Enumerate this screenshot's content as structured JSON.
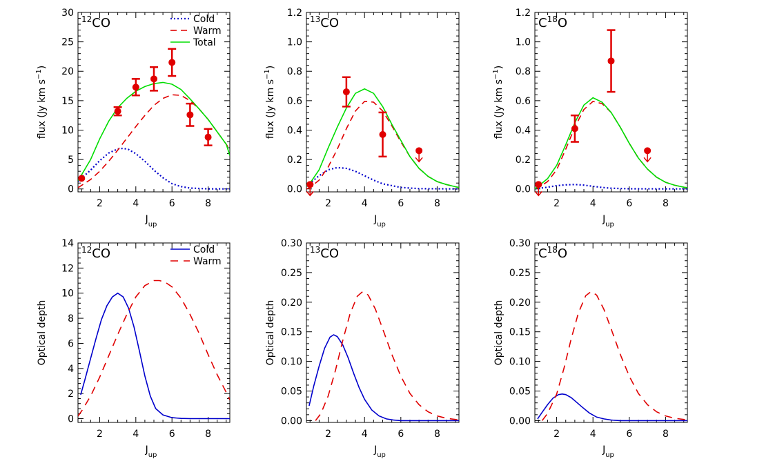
{
  "chart_data": [
    {
      "type": "line",
      "panel": "top-left",
      "label_main": "CO",
      "label_sup": "12",
      "label_order": "sup-main",
      "xlim": [
        0.8,
        9.2
      ],
      "ylim": [
        -0.5,
        30
      ],
      "xticks": [
        2,
        4,
        6,
        8
      ],
      "yticks": [
        0,
        5,
        10,
        15,
        20,
        25,
        30
      ],
      "ytick_labels": [
        "0",
        "5",
        "10",
        "15",
        "20",
        "25",
        "30"
      ],
      "ylabel_parts": [
        "flux (Jy km s",
        "−1",
        ")"
      ],
      "xlabel_main": "J",
      "xlabel_sub": "up",
      "legend": [
        {
          "label": "Cold",
          "style": "dotted",
          "color": "#0000cc"
        },
        {
          "label": "Warm",
          "style": "dashed",
          "color": "#e00000"
        },
        {
          "label": "Total",
          "style": "solid",
          "color": "#00dd00"
        }
      ],
      "series": [
        {
          "name": "Cold",
          "style": "dotted",
          "color": "#0000cc",
          "x": [
            0.8,
            1.5,
            2,
            2.5,
            3,
            3.3,
            3.6,
            4,
            4.5,
            5,
            5.5,
            6,
            6.5,
            7,
            8,
            9.2
          ],
          "y": [
            1.3,
            3.2,
            4.8,
            6.1,
            6.8,
            6.9,
            6.7,
            6.0,
            4.7,
            3.2,
            1.9,
            0.9,
            0.4,
            0.15,
            0.02,
            0
          ]
        },
        {
          "name": "Warm",
          "style": "dashed",
          "color": "#e00000",
          "x": [
            0.8,
            1,
            1.5,
            2,
            2.5,
            3,
            3.5,
            4,
            4.5,
            5,
            5.5,
            6,
            6.5,
            7,
            7.5,
            8,
            8.5,
            9,
            9.2
          ],
          "y": [
            0.2,
            0.6,
            1.6,
            3.0,
            4.7,
            6.6,
            8.6,
            10.6,
            12.5,
            14.2,
            15.4,
            16.0,
            15.9,
            15.0,
            13.6,
            11.8,
            9.7,
            7.6,
            6.7
          ]
        },
        {
          "name": "Total",
          "style": "solid",
          "color": "#00dd00",
          "x": [
            0.8,
            1,
            1.5,
            2,
            2.5,
            3,
            3.5,
            4,
            4.5,
            5,
            5.5,
            6,
            6.5,
            7,
            7.5,
            8,
            8.5,
            9,
            9.2
          ],
          "y": [
            1.4,
            2.4,
            5.0,
            8.5,
            11.5,
            13.8,
            15.4,
            16.6,
            17.4,
            17.9,
            18.1,
            17.8,
            16.9,
            15.3,
            13.6,
            11.8,
            9.7,
            7.6,
            5.7
          ]
        }
      ],
      "points": [
        {
          "x": 1,
          "y": 1.8,
          "err": 0
        },
        {
          "x": 3,
          "y": 13.2,
          "err": 0.7
        },
        {
          "x": 4,
          "y": 17.3,
          "err": 1.4
        },
        {
          "x": 5,
          "y": 18.7,
          "err": 2.0
        },
        {
          "x": 6,
          "y": 21.5,
          "err": 2.3
        },
        {
          "x": 7,
          "y": 12.6,
          "err": 1.9
        },
        {
          "x": 8,
          "y": 8.8,
          "err": 1.4
        }
      ],
      "upper_limits": []
    },
    {
      "type": "line",
      "panel": "top-middle",
      "label_main": "CO",
      "label_sup": "13",
      "label_order": "sup-main",
      "xlim": [
        0.8,
        9.2
      ],
      "ylim": [
        -0.02,
        1.2
      ],
      "xticks": [
        2,
        4,
        6,
        8
      ],
      "yticks": [
        0,
        0.2,
        0.4,
        0.6,
        0.8,
        1.0,
        1.2
      ],
      "ytick_labels": [
        "0.0",
        "0.2",
        "0.4",
        "0.6",
        "0.8",
        "1.0",
        "1.2"
      ],
      "ylabel_parts": [
        "flux (Jy km s",
        "−1",
        ")"
      ],
      "xlabel_main": "J",
      "xlabel_sub": "up",
      "legend": [],
      "series": [
        {
          "name": "Cold",
          "style": "dotted",
          "color": "#0000cc",
          "x": [
            0.8,
            1.5,
            2,
            2.5,
            3,
            3.5,
            4,
            4.5,
            5,
            6,
            7,
            9.2
          ],
          "y": [
            0.02,
            0.09,
            0.13,
            0.145,
            0.14,
            0.12,
            0.09,
            0.06,
            0.035,
            0.01,
            0.002,
            0
          ]
        },
        {
          "name": "Warm",
          "style": "dashed",
          "color": "#e00000",
          "x": [
            0.8,
            1,
            1.5,
            2,
            2.5,
            3,
            3.5,
            4,
            4.5,
            5,
            5.5,
            6,
            6.5,
            7,
            7.5,
            8,
            8.5,
            9,
            9.2
          ],
          "y": [
            0.0,
            0.01,
            0.06,
            0.15,
            0.27,
            0.41,
            0.53,
            0.595,
            0.59,
            0.53,
            0.43,
            0.32,
            0.22,
            0.14,
            0.085,
            0.05,
            0.03,
            0.015,
            0.01
          ]
        },
        {
          "name": "Total",
          "style": "solid",
          "color": "#00dd00",
          "x": [
            0.8,
            1,
            1.5,
            2,
            2.5,
            3,
            3.5,
            4,
            4.5,
            5,
            5.5,
            6,
            6.5,
            7,
            7.5,
            8,
            8.5,
            9,
            9.2
          ],
          "y": [
            0.02,
            0.04,
            0.13,
            0.28,
            0.42,
            0.55,
            0.65,
            0.68,
            0.65,
            0.56,
            0.44,
            0.33,
            0.22,
            0.14,
            0.085,
            0.05,
            0.03,
            0.015,
            0.01
          ]
        }
      ],
      "points": [
        {
          "x": 1,
          "y": 0.03,
          "err": 0
        },
        {
          "x": 3,
          "y": 0.66,
          "err": 0.1
        },
        {
          "x": 5,
          "y": 0.37,
          "err": 0.15
        }
      ],
      "upper_limits": [
        {
          "x": 1,
          "y": 0.03
        },
        {
          "x": 7,
          "y": 0.26
        }
      ]
    },
    {
      "type": "line",
      "panel": "top-right",
      "label_main": "C",
      "label_sup": "18",
      "label_tail": "O",
      "label_order": "main-sup-tail",
      "xlim": [
        0.8,
        9.2
      ],
      "ylim": [
        -0.02,
        1.2
      ],
      "xticks": [
        2,
        4,
        6,
        8
      ],
      "yticks": [
        0,
        0.2,
        0.4,
        0.6,
        0.8,
        1.0,
        1.2
      ],
      "ytick_labels": [
        "0.0",
        "0.2",
        "0.4",
        "0.6",
        "0.8",
        "1.0",
        "1.2"
      ],
      "ylabel_parts": [
        "flux (Jy km s",
        "−1",
        ")"
      ],
      "xlabel_main": "J",
      "xlabel_sub": "up",
      "legend": [],
      "series": [
        {
          "name": "Cold",
          "style": "dotted",
          "color": "#0000cc",
          "x": [
            0.8,
            1.5,
            2,
            2.5,
            3,
            3.5,
            4,
            4.5,
            5,
            6,
            9.2
          ],
          "y": [
            0.0,
            0.012,
            0.022,
            0.028,
            0.03,
            0.026,
            0.018,
            0.01,
            0.005,
            0.001,
            0
          ]
        },
        {
          "name": "Warm",
          "style": "dashed",
          "color": "#e00000",
          "x": [
            0.8,
            1,
            1.5,
            2,
            2.5,
            3,
            3.5,
            4,
            4.5,
            5,
            5.5,
            6,
            6.5,
            7,
            7.5,
            8,
            8.5,
            9,
            9.2
          ],
          "y": [
            0.0,
            0.01,
            0.05,
            0.13,
            0.27,
            0.42,
            0.54,
            0.595,
            0.58,
            0.52,
            0.42,
            0.31,
            0.21,
            0.135,
            0.08,
            0.045,
            0.025,
            0.012,
            0.008
          ]
        },
        {
          "name": "Total",
          "style": "solid",
          "color": "#00dd00",
          "x": [
            0.8,
            1,
            1.5,
            2,
            2.5,
            3,
            3.5,
            4,
            4.5,
            5,
            5.5,
            6,
            6.5,
            7,
            7.5,
            8,
            8.5,
            9,
            9.2
          ],
          "y": [
            0.0,
            0.02,
            0.07,
            0.16,
            0.3,
            0.45,
            0.57,
            0.62,
            0.59,
            0.52,
            0.42,
            0.31,
            0.21,
            0.135,
            0.08,
            0.045,
            0.025,
            0.012,
            0.008
          ]
        }
      ],
      "points": [
        {
          "x": 1,
          "y": 0.03,
          "err": 0
        },
        {
          "x": 3,
          "y": 0.41,
          "err": 0.09
        },
        {
          "x": 5,
          "y": 0.87,
          "err": 0.21
        }
      ],
      "upper_limits": [
        {
          "x": 1,
          "y": 0.03
        },
        {
          "x": 7,
          "y": 0.26
        }
      ]
    },
    {
      "type": "line",
      "panel": "bottom-left",
      "label_main": "CO",
      "label_sup": "12",
      "label_order": "sup-main",
      "xlim": [
        0.8,
        9.2
      ],
      "ylim": [
        -0.3,
        14
      ],
      "xticks": [
        2,
        4,
        6,
        8
      ],
      "yticks": [
        0,
        2,
        4,
        6,
        8,
        10,
        12,
        14
      ],
      "ytick_labels": [
        "0",
        "2",
        "4",
        "6",
        "8",
        "10",
        "12",
        "14"
      ],
      "ylabel_parts": [
        "Optical depth"
      ],
      "xlabel_main": "J",
      "xlabel_sub": "up",
      "legend": [
        {
          "label": "Cold",
          "style": "solid",
          "color": "#0000cc"
        },
        {
          "label": "Warm",
          "style": "longdash",
          "color": "#e00000"
        }
      ],
      "series": [
        {
          "name": "Cold",
          "style": "solid",
          "color": "#0000cc",
          "x": [
            0.95,
            1.2,
            1.5,
            1.8,
            2.1,
            2.4,
            2.7,
            3,
            3.3,
            3.6,
            3.9,
            4.2,
            4.5,
            4.8,
            5.1,
            5.5,
            6,
            6.5,
            7,
            9.2
          ],
          "y": [
            1.9,
            3.2,
            4.8,
            6.4,
            7.9,
            9.0,
            9.7,
            10.0,
            9.7,
            8.8,
            7.3,
            5.4,
            3.4,
            1.8,
            0.8,
            0.3,
            0.08,
            0.02,
            0,
            0
          ]
        },
        {
          "name": "Warm",
          "style": "longdash",
          "color": "#e00000",
          "x": [
            0.8,
            1,
            1.5,
            2,
            2.5,
            3,
            3.5,
            4,
            4.5,
            5,
            5.3,
            5.6,
            6,
            6.5,
            7,
            7.5,
            8,
            8.5,
            9,
            9.2
          ],
          "y": [
            0.2,
            0.6,
            1.8,
            3.3,
            5.0,
            6.7,
            8.3,
            9.7,
            10.6,
            11.0,
            11.0,
            10.9,
            10.5,
            9.6,
            8.3,
            6.8,
            5.1,
            3.5,
            2.1,
            1.5
          ]
        }
      ],
      "points": [],
      "upper_limits": []
    },
    {
      "type": "line",
      "panel": "bottom-middle",
      "label_main": "CO",
      "label_sup": "13",
      "label_order": "sup-main",
      "xlim": [
        0.8,
        9.2
      ],
      "ylim": [
        -0.003,
        0.3
      ],
      "xticks": [
        2,
        4,
        6,
        8
      ],
      "yticks": [
        0,
        0.05,
        0.1,
        0.15,
        0.2,
        0.25,
        0.3
      ],
      "ytick_labels": [
        "0.00",
        "0.05",
        "0.10",
        "0.15",
        "0.20",
        "0.25",
        "0.30"
      ],
      "ylabel_parts": [
        "Optical depth"
      ],
      "xlabel_main": "J",
      "xlabel_sub": "up",
      "legend": [],
      "series": [
        {
          "name": "Cold",
          "style": "solid",
          "color": "#0000cc",
          "x": [
            0.95,
            1.2,
            1.5,
            1.8,
            2.1,
            2.3,
            2.5,
            2.8,
            3.1,
            3.4,
            3.7,
            4,
            4.4,
            4.8,
            5.2,
            5.6,
            6,
            7,
            9.2
          ],
          "y": [
            0.025,
            0.058,
            0.092,
            0.122,
            0.141,
            0.145,
            0.142,
            0.128,
            0.106,
            0.08,
            0.056,
            0.036,
            0.018,
            0.008,
            0.003,
            0.001,
            0,
            0,
            0
          ]
        },
        {
          "name": "Warm",
          "style": "longdash",
          "color": "#e00000",
          "x": [
            1.3,
            1.6,
            2,
            2.4,
            2.8,
            3.2,
            3.6,
            3.9,
            4.2,
            4.6,
            5,
            5.5,
            6,
            6.5,
            7,
            7.5,
            8,
            8.5,
            9,
            9.2
          ],
          "y": [
            0,
            0.012,
            0.042,
            0.085,
            0.135,
            0.18,
            0.21,
            0.218,
            0.212,
            0.188,
            0.155,
            0.112,
            0.075,
            0.046,
            0.027,
            0.015,
            0.008,
            0.004,
            0.002,
            0.001
          ]
        }
      ],
      "points": [],
      "upper_limits": []
    },
    {
      "type": "line",
      "panel": "bottom-right",
      "label_main": "C",
      "label_sup": "18",
      "label_tail": "O",
      "label_order": "main-sup-tail",
      "xlim": [
        0.8,
        9.2
      ],
      "ylim": [
        -0.003,
        0.3
      ],
      "xticks": [
        2,
        4,
        6,
        8
      ],
      "yticks": [
        0,
        0.05,
        0.1,
        0.15,
        0.2,
        0.25,
        0.3
      ],
      "ytick_labels": [
        "0.00",
        "0.05",
        "0.10",
        "0.15",
        "0.20",
        "0.25",
        "0.30"
      ],
      "ylabel_parts": [
        "Optical depth"
      ],
      "xlabel_main": "J",
      "xlabel_sub": "up",
      "legend": [],
      "series": [
        {
          "name": "Cold",
          "style": "solid",
          "color": "#0000cc",
          "x": [
            0.95,
            1.2,
            1.5,
            1.8,
            2.1,
            2.3,
            2.5,
            2.8,
            3.1,
            3.4,
            3.8,
            4.2,
            4.6,
            5,
            5.5,
            6,
            9.2
          ],
          "y": [
            0.003,
            0.014,
            0.027,
            0.038,
            0.044,
            0.045,
            0.044,
            0.039,
            0.031,
            0.023,
            0.013,
            0.006,
            0.003,
            0.001,
            0,
            0,
            0
          ]
        },
        {
          "name": "Warm",
          "style": "longdash",
          "color": "#e00000",
          "x": [
            1.2,
            1.5,
            2,
            2.4,
            2.8,
            3.2,
            3.6,
            3.9,
            4.2,
            4.6,
            5,
            5.5,
            6,
            6.5,
            7,
            7.5,
            8,
            8.5,
            9,
            9.2
          ],
          "y": [
            0,
            0.012,
            0.045,
            0.088,
            0.138,
            0.182,
            0.211,
            0.218,
            0.212,
            0.188,
            0.155,
            0.112,
            0.075,
            0.046,
            0.027,
            0.015,
            0.008,
            0.004,
            0.002,
            0.001
          ]
        }
      ],
      "points": [],
      "upper_limits": []
    }
  ]
}
